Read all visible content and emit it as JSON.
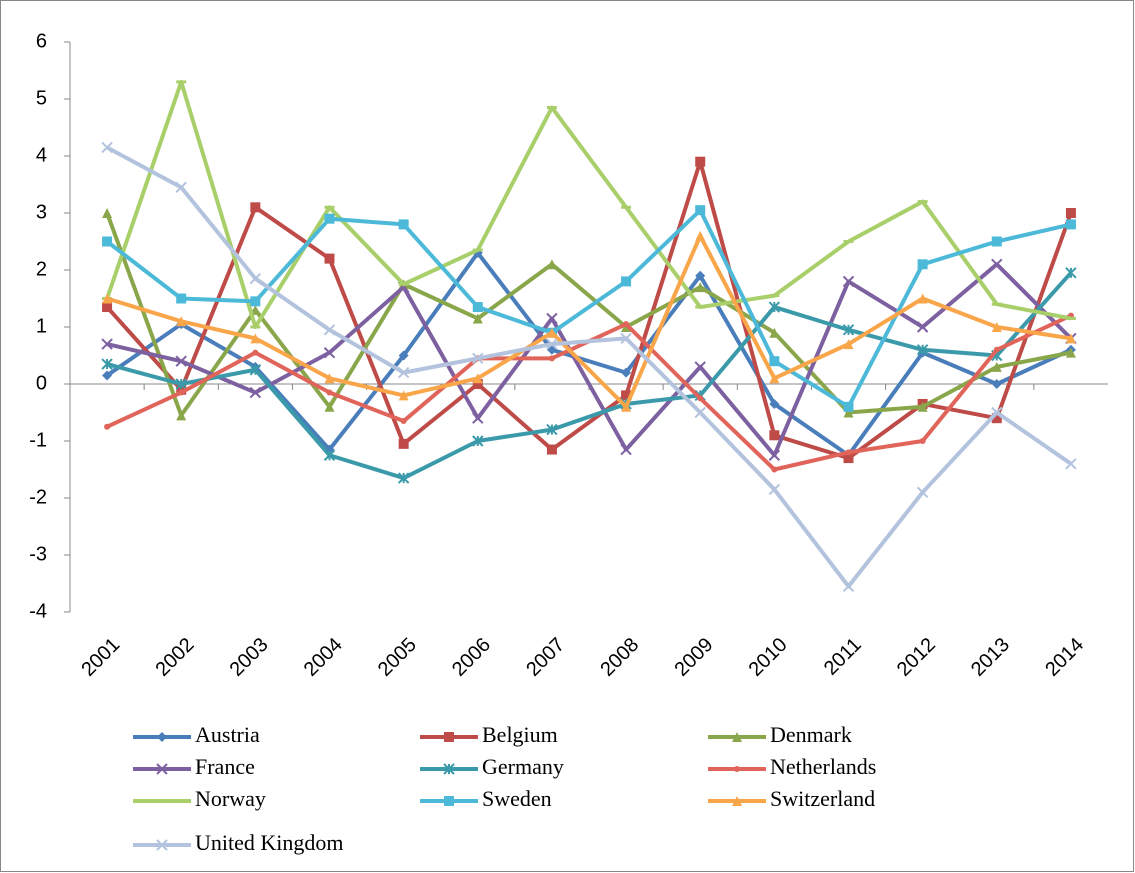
{
  "chart_data": {
    "type": "line",
    "categories": [
      "2001",
      "2002",
      "2003",
      "2004",
      "2005",
      "2006",
      "2007",
      "2008",
      "2009",
      "2010",
      "2011",
      "2012",
      "2013",
      "2014"
    ],
    "ylim": [
      -4,
      6
    ],
    "yticks": [
      -4,
      -3,
      -2,
      -1,
      0,
      1,
      2,
      3,
      4,
      5,
      6
    ],
    "series": [
      {
        "name": "Austria",
        "color": "#4a7ebb",
        "marker": "diamond",
        "values": [
          0.15,
          1.05,
          0.3,
          -1.15,
          0.5,
          2.3,
          0.6,
          0.2,
          1.9,
          -0.35,
          -1.25,
          0.55,
          0.0,
          0.6
        ]
      },
      {
        "name": "Belgium",
        "color": "#be4b48",
        "marker": "square",
        "values": [
          1.35,
          -0.1,
          3.1,
          2.2,
          -1.05,
          0.0,
          -1.15,
          -0.2,
          3.9,
          -0.9,
          -1.3,
          -0.35,
          -0.6,
          3.0
        ]
      },
      {
        "name": "Denmark",
        "color": "#8aa64a",
        "marker": "triangle",
        "values": [
          3.0,
          -0.55,
          1.3,
          -0.4,
          1.75,
          1.15,
          2.1,
          1.0,
          1.7,
          0.9,
          -0.5,
          -0.4,
          0.3,
          0.55
        ]
      },
      {
        "name": "France",
        "color": "#7d60a0",
        "marker": "x",
        "values": [
          0.7,
          0.4,
          -0.15,
          0.55,
          1.7,
          -0.6,
          1.15,
          -1.15,
          0.3,
          -1.25,
          1.8,
          1.0,
          2.1,
          0.8
        ]
      },
      {
        "name": "Germany",
        "color": "#3b9aaa",
        "marker": "star",
        "values": [
          0.35,
          0.0,
          0.25,
          -1.25,
          -1.65,
          -1.0,
          -0.8,
          -0.35,
          -0.2,
          1.35,
          0.95,
          0.6,
          0.5,
          1.95
        ]
      },
      {
        "name": "Netherlands",
        "color": "#e0645a",
        "marker": "circle",
        "values": [
          -0.75,
          -0.15,
          0.55,
          -0.15,
          -0.65,
          0.45,
          0.45,
          1.05,
          -0.25,
          -1.5,
          -1.2,
          -1.0,
          0.6,
          1.2
        ]
      },
      {
        "name": "Norway",
        "color": "#a9cf6a",
        "marker": "dash",
        "values": [
          1.5,
          5.3,
          1.0,
          3.1,
          1.75,
          2.35,
          4.85,
          3.1,
          1.35,
          1.55,
          2.5,
          3.2,
          1.4,
          1.15
        ]
      },
      {
        "name": "Sweden",
        "color": "#4cb9d8",
        "marker": "square",
        "values": [
          2.5,
          1.5,
          1.45,
          2.9,
          2.8,
          1.35,
          0.9,
          1.8,
          3.05,
          0.4,
          -0.4,
          2.1,
          2.5,
          2.8
        ]
      },
      {
        "name": "Switzerland",
        "color": "#f9a54a",
        "marker": "triangle",
        "values": [
          1.5,
          1.1,
          0.8,
          0.1,
          -0.2,
          0.1,
          0.9,
          -0.4,
          2.6,
          0.1,
          0.7,
          1.5,
          1.0,
          0.8
        ]
      },
      {
        "name": "United Kingdom",
        "color": "#b3c3dd",
        "marker": "x",
        "values": [
          4.15,
          3.45,
          1.85,
          0.95,
          0.2,
          0.45,
          0.7,
          0.8,
          -0.5,
          -1.85,
          -3.55,
          -1.9,
          -0.5,
          -1.4
        ]
      }
    ]
  }
}
